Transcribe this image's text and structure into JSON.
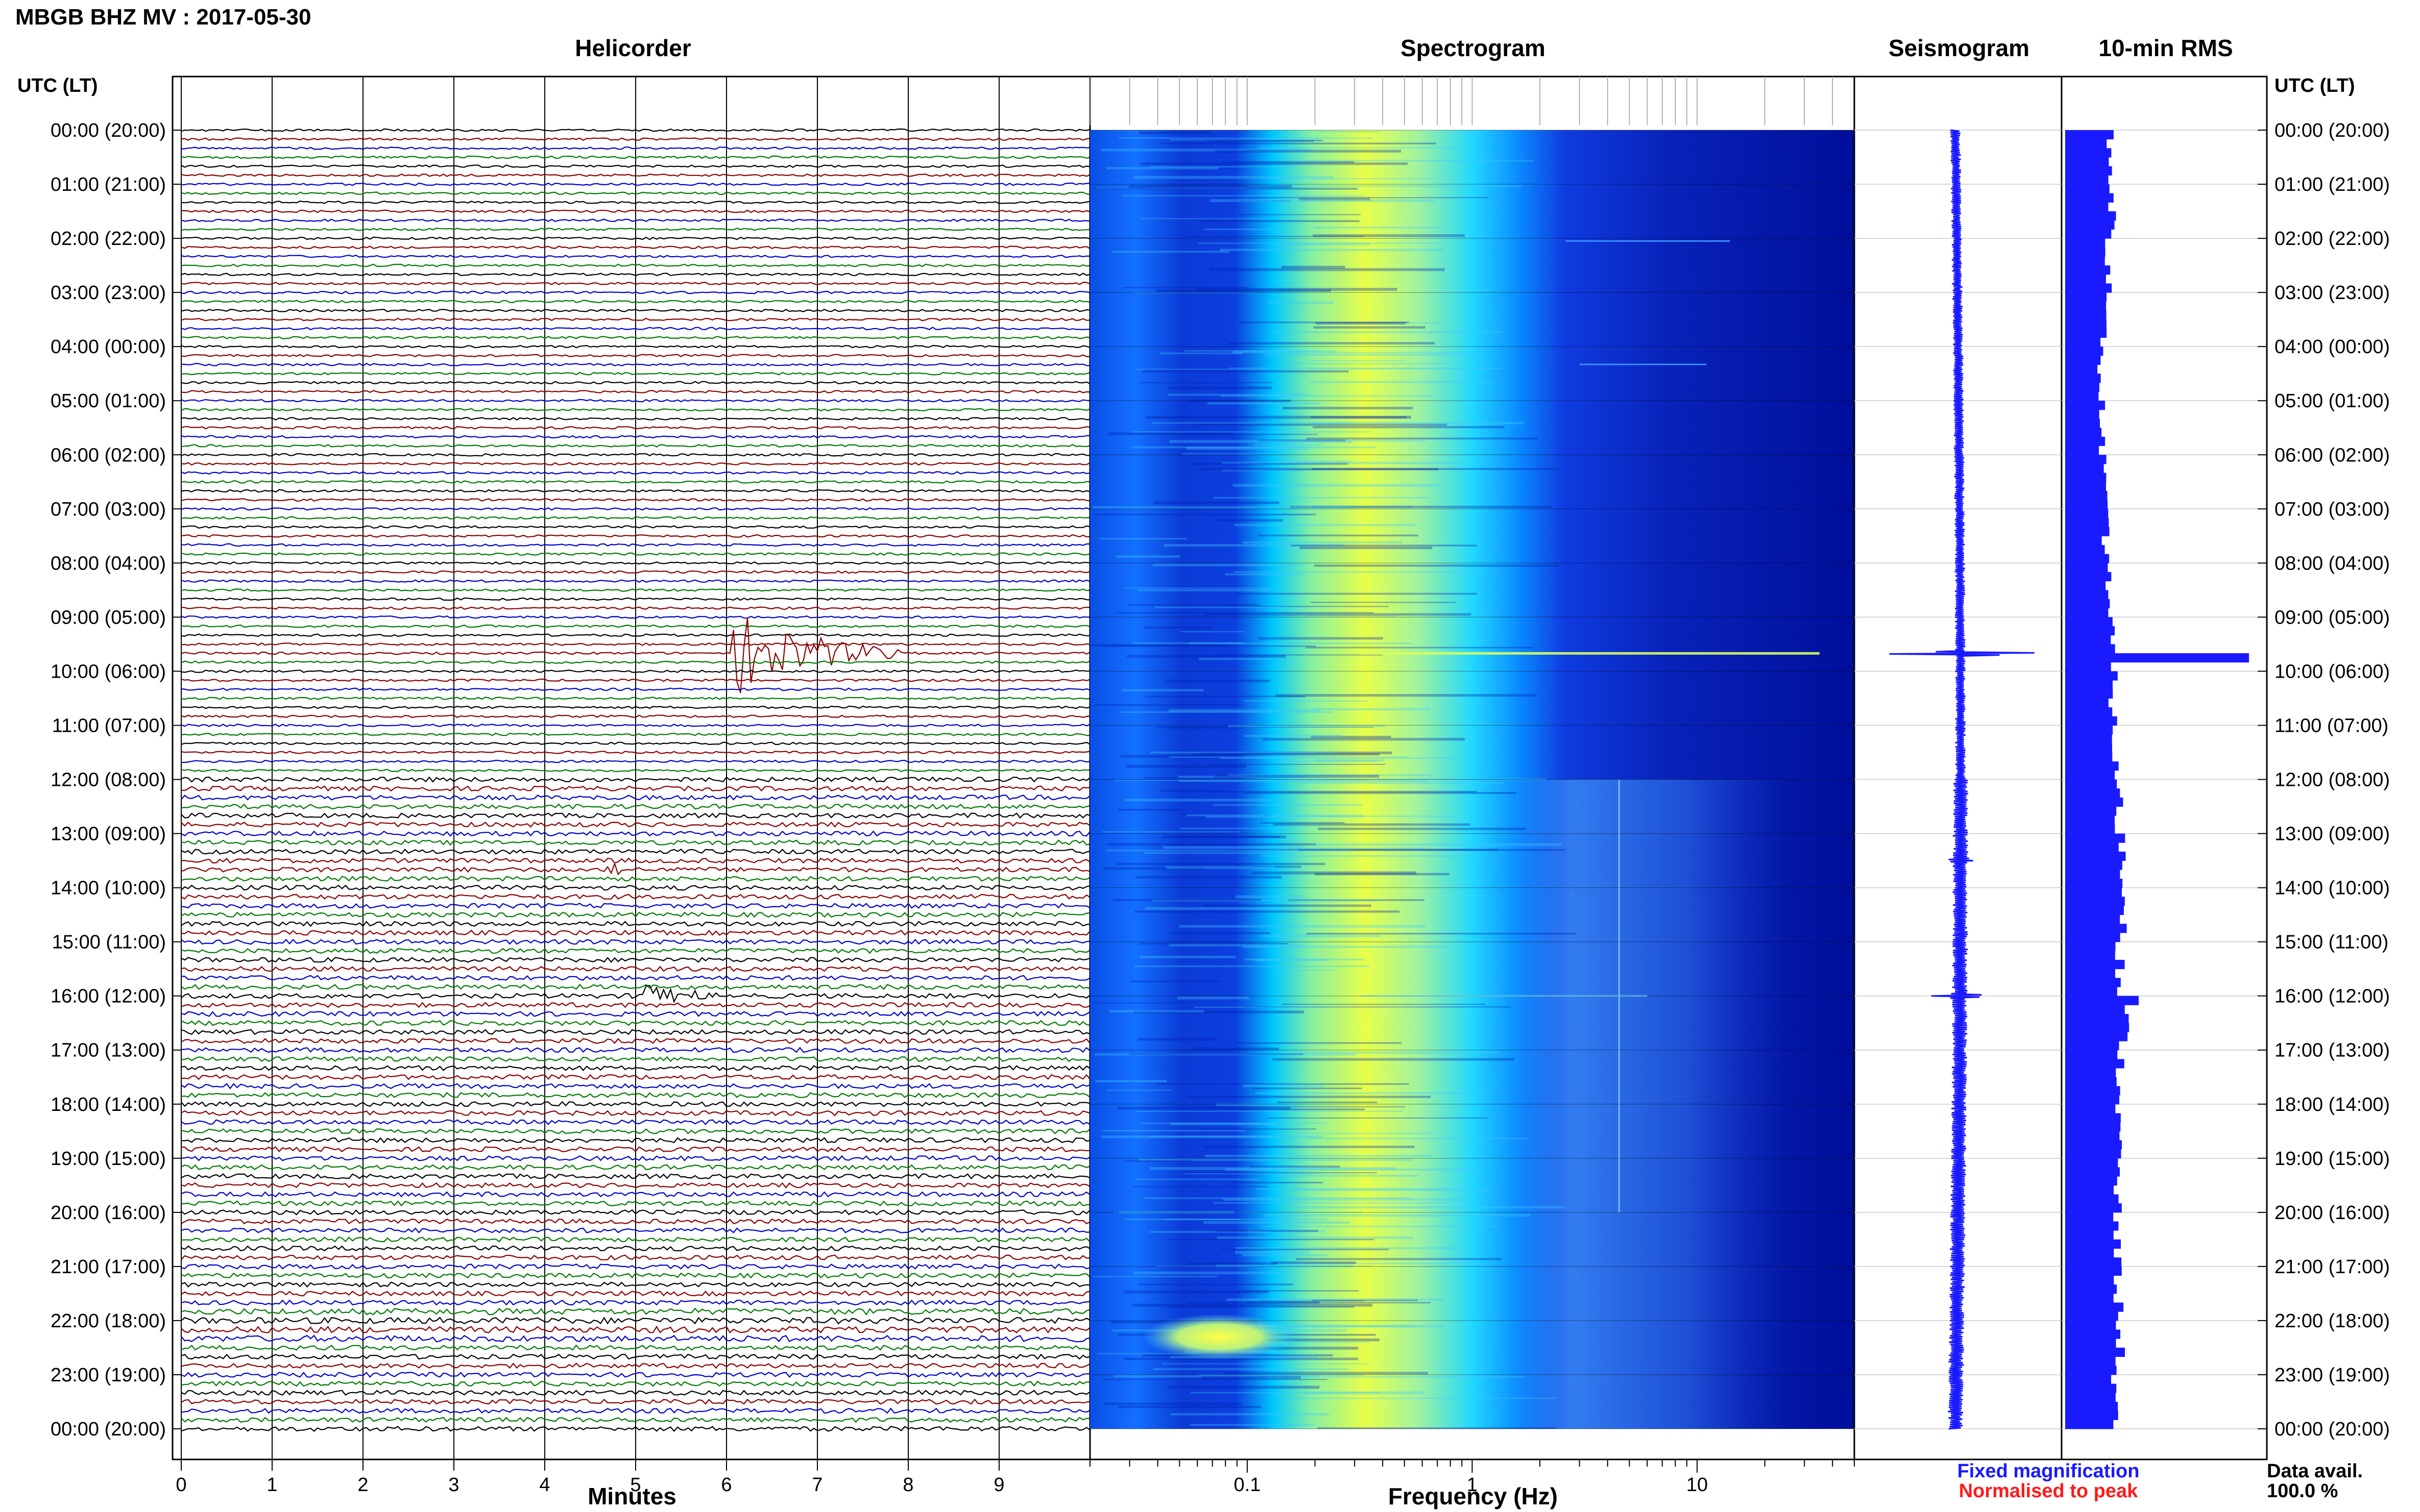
{
  "page": {
    "title": "MBGB BHZ MV : 2017-05-30"
  },
  "panels": {
    "helicorder": "Helicorder",
    "spectrogram": "Spectrogram",
    "seismogram": "Seismogram",
    "rms": "10-min RMS"
  },
  "axes": {
    "utc_header_left": "UTC (LT)",
    "utc_header_right": "UTC (LT)",
    "minutes_label": "Minutes",
    "frequency_label": "Frequency (Hz)"
  },
  "legend": {
    "fixed": "Fixed magnification",
    "normalised": "Normalised to peak",
    "fixed_color": "#1a1aff",
    "normalised_color": "#ff1a1a"
  },
  "availability": {
    "label": "Data avail.",
    "value": "100.0 %"
  },
  "colors": {
    "trace_cycle": [
      "#000000",
      "#8b0000",
      "#0000cc",
      "#007a00"
    ],
    "spectrogram_low": "#00008b",
    "spectrogram_mid": "#00e5ff",
    "spectrogram_high": "#ffff33",
    "rms_bar": "#1a1aff",
    "seismogram": "#1a1aff"
  },
  "chart_data": [
    {
      "type": "line",
      "panel": "helicorder",
      "title": "Helicorder",
      "xlabel": "Minutes",
      "x_ticks": [
        "0",
        "1",
        "2",
        "3",
        "4",
        "5",
        "6",
        "7",
        "8",
        "9"
      ],
      "xlim": [
        0,
        10
      ],
      "rows_per_hour": 6,
      "hours": 24,
      "time_labels": [
        "00:00 (20:00)",
        "01:00 (21:00)",
        "02:00 (22:00)",
        "03:00 (23:00)",
        "04:00 (00:00)",
        "05:00 (01:00)",
        "06:00 (02:00)",
        "07:00 (03:00)",
        "08:00 (04:00)",
        "09:00 (05:00)",
        "10:00 (06:00)",
        "11:00 (07:00)",
        "12:00 (08:00)",
        "13:00 (09:00)",
        "14:00 (10:00)",
        "15:00 (11:00)",
        "16:00 (12:00)",
        "17:00 (13:00)",
        "18:00 (14:00)",
        "19:00 (15:00)",
        "20:00 (16:00)",
        "21:00 (17:00)",
        "22:00 (18:00)",
        "23:00 (19:00)",
        "00:00 (20:00)"
      ],
      "events": [
        {
          "utc_hour": 9.67,
          "minute": 6.0,
          "duration_min": 1.9,
          "amplitude": 6.0,
          "color": "#8b0000"
        },
        {
          "utc_hour": 13.67,
          "minute": 4.6,
          "duration_min": 0.5,
          "amplitude": 1.2,
          "color": "#8b0000"
        },
        {
          "utc_hour": 16.0,
          "minute": 5.0,
          "duration_min": 1.0,
          "amplitude": 2.2,
          "color": "#000000"
        }
      ]
    },
    {
      "type": "heatmap",
      "panel": "spectrogram",
      "title": "Spectrogram",
      "xlabel": "Frequency (Hz)",
      "x_scale": "log",
      "xlim": [
        0.02,
        50
      ],
      "x_ticks": [
        "0.1",
        "1",
        "10"
      ],
      "x_tick_values": [
        0.1,
        1,
        10
      ],
      "peak_band_hz": [
        0.25,
        0.55
      ],
      "notes": "Broad microseism energy peaks near 0.3-0.5 Hz; high-frequency energy increases after 12:00 UTC; strong narrow line near 9:40 UTC; bright low-frequency patch near 22:00 UTC."
    },
    {
      "type": "line",
      "panel": "seismogram",
      "title": "Seismogram",
      "spikes": [
        {
          "utc_hour": 9.67,
          "amplitude": 1.0
        },
        {
          "utc_hour": 16.0,
          "amplitude": 0.28
        },
        {
          "utc_hour": 13.5,
          "amplitude": 0.1
        }
      ]
    },
    {
      "type": "bar",
      "panel": "rms",
      "title": "10-min RMS",
      "orientation": "horizontal",
      "bins_per_hour": 6,
      "relative_values_by_hour": [
        0.24,
        0.26,
        0.24,
        0.21,
        0.19,
        0.2,
        0.21,
        0.22,
        0.24,
        0.25,
        0.26,
        0.27,
        0.29,
        0.31,
        0.33,
        0.3,
        0.32,
        0.3,
        0.29,
        0.28,
        0.28,
        0.29,
        0.3,
        0.27
      ],
      "spikes": [
        {
          "utc_hour": 9.67,
          "value": 1.0
        },
        {
          "utc_hour": 16.0,
          "value": 0.4
        },
        {
          "utc_hour": 22.17,
          "value": 0.3
        }
      ]
    }
  ]
}
